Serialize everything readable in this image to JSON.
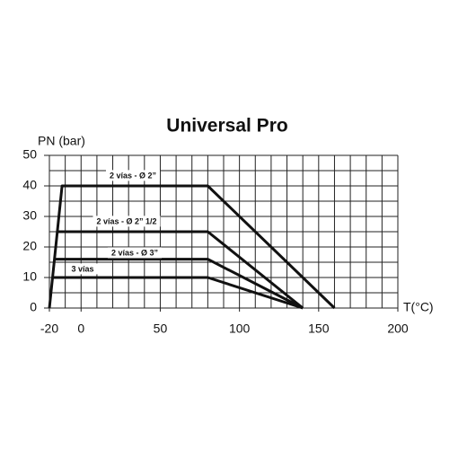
{
  "chart_data": {
    "type": "line",
    "title": "Universal Pro",
    "y_label": "PN (bar)",
    "x_label": "T(°C)",
    "xlim": [
      -20,
      200
    ],
    "ylim": [
      0,
      50
    ],
    "xticks": [
      -20,
      0,
      50,
      100,
      150,
      200
    ],
    "yticks": [
      0,
      10,
      20,
      30,
      40,
      50
    ],
    "grid": true,
    "color": "#111",
    "series": [
      {
        "name": "2 vías - Ø 2”",
        "x": [
          -20,
          -12,
          80,
          160
        ],
        "values": [
          0,
          40,
          40,
          0
        ]
      },
      {
        "name": "2 vías - Ø 2” 1/2",
        "x": [
          -15,
          80,
          140
        ],
        "values": [
          25,
          25,
          0
        ]
      },
      {
        "name": "2 vías - Ø 3”",
        "x": [
          -17,
          80,
          140
        ],
        "values": [
          16,
          16,
          0
        ]
      },
      {
        "name": "3 vías",
        "x": [
          -18,
          80,
          140
        ],
        "values": [
          10,
          10,
          0
        ]
      }
    ]
  }
}
